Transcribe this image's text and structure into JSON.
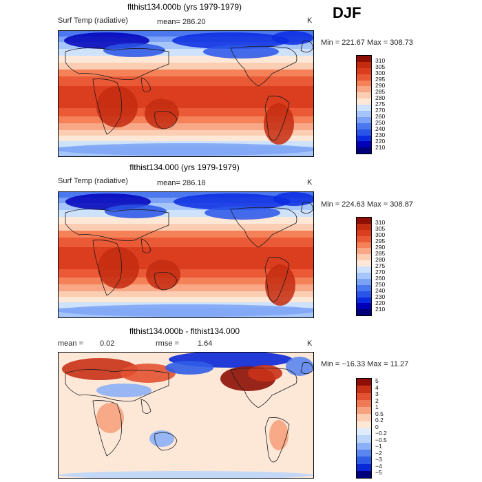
{
  "season": "DJF",
  "colors": {
    "temp_scale": [
      "#00007a",
      "#0000b8",
      "#0a2be0",
      "#2a55e8",
      "#4b78ee",
      "#7ba2f5",
      "#a6c5fa",
      "#cfe2fb",
      "#fde8d8",
      "#fbcdb3",
      "#f8a886",
      "#f48158",
      "#ea5a36",
      "#db3d1f",
      "#c42c10",
      "#8d0f05"
    ],
    "diff_scale": [
      "#00007a",
      "#0a28d8",
      "#2f5de8",
      "#5b86f0",
      "#8cb0f6",
      "#bcd5fb",
      "#e0ecfc",
      "#fde8d8",
      "#fbcdb3",
      "#f6a27f",
      "#ef7a55",
      "#e35232",
      "#c93218",
      "#8d0f05"
    ],
    "coastline": "#1a1a1a"
  },
  "panels": [
    {
      "title": "flthist134.000b (yrs 1979-1979)",
      "variable": "Surf Temp (radiative)",
      "mean_text": "mean=  286.20",
      "units": "K",
      "minmax": "Min = 221.67 Max = 308.73"
    },
    {
      "title": "flthist134.000 (yrs 1979-1979)",
      "variable": "Surf Temp (radiative)",
      "mean_text": "mean=  286.18",
      "units": "K",
      "minmax": "Min = 224.63 Max = 308.87"
    },
    {
      "title": "flthist134.000b - flthist134.000",
      "mean_label": "mean =",
      "mean_value": "0.02",
      "rmse_label": "rmse =",
      "rmse_value": "1.64",
      "units": "K",
      "minmax": "Min = −16.33 Max =   11.27"
    }
  ],
  "chart_data": [
    {
      "type": "heatmap",
      "title": "flthist134.000b (yrs 1979-1979)",
      "variable": "Surf Temp (radiative)",
      "units": "K",
      "mean": 286.2,
      "min": 221.67,
      "max": 308.73,
      "colorbar_levels": [
        "310",
        "305",
        "300",
        "295",
        "290",
        "285",
        "280",
        "275",
        "270",
        "260",
        "250",
        "240",
        "230",
        "220",
        "210"
      ]
    },
    {
      "type": "heatmap",
      "title": "flthist134.000 (yrs 1979-1979)",
      "variable": "Surf Temp (radiative)",
      "units": "K",
      "mean": 286.18,
      "min": 224.63,
      "max": 308.87,
      "colorbar_levels": [
        "310",
        "305",
        "300",
        "295",
        "290",
        "285",
        "280",
        "275",
        "270",
        "260",
        "250",
        "240",
        "230",
        "220",
        "210"
      ]
    },
    {
      "type": "heatmap",
      "title": "flthist134.000b - flthist134.000",
      "units": "K",
      "mean": 0.02,
      "rmse": 1.64,
      "min": -16.33,
      "max": 11.27,
      "colorbar_levels": [
        "5",
        "4",
        "3",
        "2",
        "1",
        "0.5",
        "0.2",
        "0",
        "−0.2",
        "−0.5",
        "−1",
        "−2",
        "−3",
        "−4",
        "−5"
      ]
    }
  ]
}
